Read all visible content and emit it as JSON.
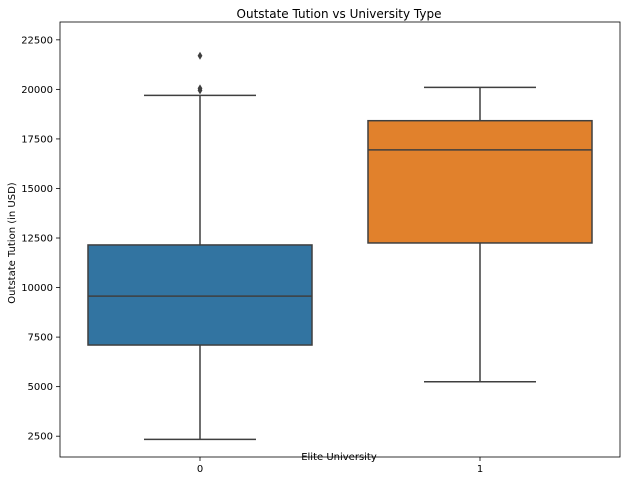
{
  "chart_data": {
    "type": "box",
    "title": "Outstate Tution vs University Type",
    "xlabel": "Elite University",
    "ylabel": "Outstate Tution (in USD)",
    "categories": [
      "0",
      "1"
    ],
    "ylim": [
      1450,
      23400
    ],
    "yticks": [
      2500,
      5000,
      7500,
      10000,
      12500,
      15000,
      17500,
      20000,
      22500
    ],
    "grid": false,
    "boxes": [
      {
        "category": "0",
        "whisker_low": 2340,
        "q1": 7100,
        "median": 9570,
        "q3": 12150,
        "whisker_high": 19700,
        "outliers": [
          19950,
          20050,
          21700
        ],
        "color": "#3274a1"
      },
      {
        "category": "1",
        "whisker_low": 5250,
        "q1": 12250,
        "median": 16950,
        "q3": 18420,
        "whisker_high": 20100,
        "outliers": [],
        "color": "#e1812c"
      }
    ]
  }
}
